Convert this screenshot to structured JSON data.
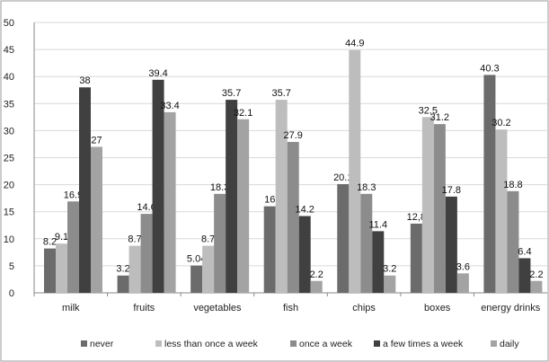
{
  "chart_data": {
    "type": "bar",
    "categories": [
      "milk",
      "fruits",
      "vegetables",
      "fish",
      "chips",
      "boxes",
      "energy drinks"
    ],
    "series": [
      {
        "name": "never",
        "color": "#6b6b6b",
        "values": [
          8.2,
          3.2,
          5.04,
          16,
          20.1,
          12.8,
          40.3
        ],
        "labels": [
          "8.2",
          "3.2",
          "5.04",
          "16",
          "20.1",
          "12,8",
          "40.3"
        ]
      },
      {
        "name": "less than once a week",
        "color": "#bdbdbd",
        "values": [
          9.1,
          8.7,
          8.7,
          35.7,
          44.9,
          32.5,
          30.2
        ],
        "labels": [
          "9.1",
          "8.7",
          "8.7",
          "35.7",
          "44.9",
          "32.5",
          "30.2"
        ]
      },
      {
        "name": "once a week",
        "color": "#8c8c8c",
        "values": [
          16.9,
          14.6,
          18.3,
          27.9,
          18.3,
          31.2,
          18.8
        ],
        "labels": [
          "16.9",
          "14.6",
          "18.3",
          "27.9",
          "18.3",
          "31.2",
          "18.8"
        ]
      },
      {
        "name": "a few times a week",
        "color": "#404040",
        "values": [
          38,
          39.4,
          35.7,
          14.2,
          11.4,
          17.8,
          6.4
        ],
        "labels": [
          "38",
          "39.4",
          "35.7",
          "14.2",
          "11.4",
          "17.8",
          "6.4"
        ]
      },
      {
        "name": "daily",
        "color": "#a3a3a3",
        "values": [
          27,
          33.4,
          32.1,
          2.2,
          3.2,
          3.6,
          2.2
        ],
        "labels": [
          "27",
          "33.4",
          "32.1",
          "2.2",
          "3.2",
          "3.6",
          "2.2"
        ]
      }
    ],
    "ylim": [
      0,
      50
    ],
    "yticks": [
      "0",
      "5",
      "10",
      "15",
      "20",
      "25",
      "30",
      "35",
      "40",
      "45",
      "50"
    ],
    "grid": true,
    "legend": "bottom"
  }
}
